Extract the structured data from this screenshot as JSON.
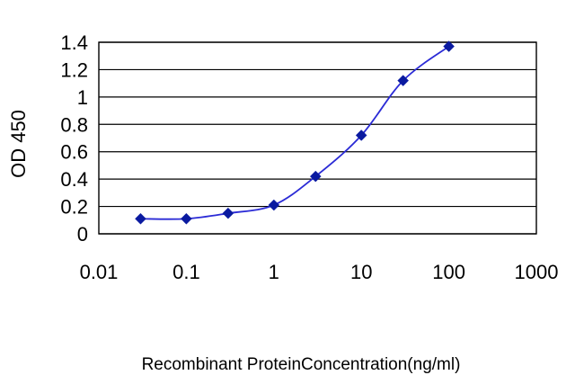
{
  "chart_data": {
    "type": "line",
    "title": "",
    "xlabel": "Recombinant ProteinConcentration(ng/ml)",
    "ylabel": "OD 450",
    "x_scale": "log",
    "xlim": [
      0.01,
      1000
    ],
    "ylim": [
      0,
      1.4
    ],
    "x_ticks": [
      0.01,
      0.1,
      1,
      10,
      100,
      1000
    ],
    "x_tick_labels": [
      "0.01",
      "0.1",
      "1",
      "10",
      "100",
      "1000"
    ],
    "y_ticks": [
      0,
      0.2,
      0.4,
      0.6,
      0.8,
      1,
      1.2,
      1.4
    ],
    "y_tick_labels": [
      "0",
      "0.2",
      "0.4",
      "0.6",
      "0.8",
      "1",
      "1.2",
      "1.4"
    ],
    "grid": "horizontal",
    "legend": "none",
    "series": [
      {
        "x": [
          0.03,
          0.1,
          0.3,
          1,
          3,
          10,
          30,
          100
        ],
        "y": [
          0.11,
          0.11,
          0.15,
          0.21,
          0.42,
          0.72,
          1.12,
          1.37
        ]
      }
    ],
    "colors": {
      "line": "#2b2bd6",
      "marker": "#0a1aa0",
      "grid": "#000000",
      "frame": "#000000"
    }
  }
}
